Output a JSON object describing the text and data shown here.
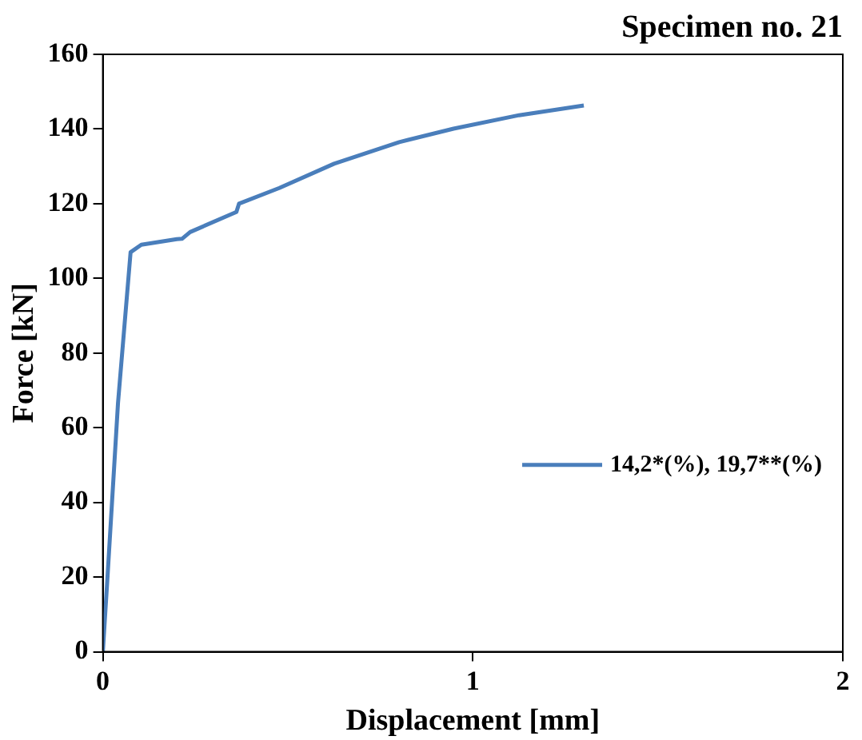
{
  "chart_data": {
    "type": "line",
    "title": "Specimen no. 21",
    "xlabel": "Displacement [mm]",
    "ylabel": "Force [kN]",
    "x": [
      0,
      0.012,
      0.041,
      0.075,
      0.104,
      0.2,
      0.214,
      0.236,
      0.361,
      0.368,
      0.477,
      0.625,
      0.801,
      0.948,
      1.125,
      1.3
    ],
    "series": [
      {
        "name": "14,2*(%), 19,7**(%)",
        "color": "#4a7ebb",
        "values": [
          0,
          19,
          66.6,
          107,
          109,
          110.5,
          110.6,
          112.4,
          117.8,
          120,
          124.2,
          130.7,
          136.5,
          140.1,
          143.7,
          146.3
        ]
      }
    ],
    "xlim": [
      0,
      2
    ],
    "xticks": [
      0,
      1,
      2
    ],
    "ylim": [
      0,
      160
    ],
    "yticks": [
      0,
      20,
      40,
      60,
      80,
      100,
      120,
      140,
      160
    ],
    "grid": false,
    "legend": "right",
    "marker": "none",
    "line_style": "solid"
  }
}
